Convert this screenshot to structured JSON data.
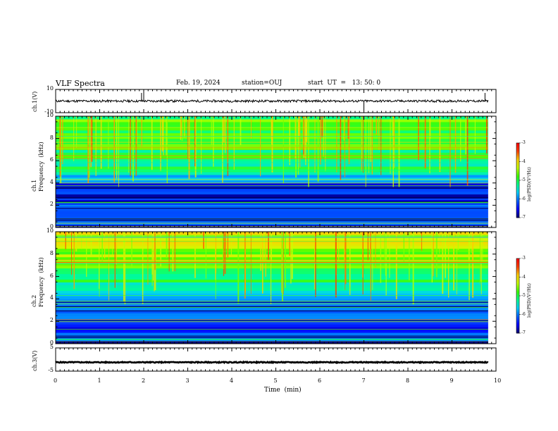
{
  "header": {
    "title": "VLF Spectra",
    "date": "Feb. 19, 2024",
    "station": "station=OUJ",
    "start": "start  UT  =   13: 50: 0"
  },
  "labels": {
    "ch1_wave": "ch.1(V)",
    "ch1_spec": "ch.1\nFrequency  (kHz)",
    "ch2_spec": "ch.2\nFrequency  (kHz)",
    "ch3_wave": "ch.3(V)",
    "xlabel": "Time  (min)",
    "colorbar": "log(PSD)(V²/Hz)"
  },
  "ticks": {
    "ch1_wave_y": [
      "10",
      "-10"
    ],
    "spec_y": [
      "0",
      "2",
      "4",
      "6",
      "8",
      "10"
    ],
    "ch3_wave_y": [
      "5",
      "-5"
    ],
    "x": [
      "0",
      "1",
      "2",
      "3",
      "4",
      "5",
      "6",
      "7",
      "8",
      "9",
      "10"
    ],
    "colorbar": [
      "-3",
      "-4",
      "-5",
      "-6",
      "-7"
    ]
  },
  "colors": {
    "colormap": [
      "#00006e",
      "#0000ff",
      "#0060ff",
      "#00d0ff",
      "#00ff90",
      "#40ff00",
      "#c8ff00",
      "#ffd000",
      "#ff4000",
      "#ff0000"
    ],
    "trace": "#000000"
  },
  "chart_data": [
    {
      "type": "line",
      "panel": "ch.1 waveform",
      "ylabel": "ch.1(V)",
      "ylim": [
        -10,
        10
      ],
      "xlim": [
        0,
        10
      ],
      "x_max_data": 9.82,
      "baseline": 0,
      "noise_amplitude": 1.0,
      "spikes": [
        {
          "x": 1.95,
          "y": 7
        },
        {
          "x": 2.0,
          "y": 8
        },
        {
          "x": 7.0,
          "y": -8
        },
        {
          "x": 9.75,
          "y": 7
        }
      ]
    },
    {
      "type": "heatmap",
      "panel": "ch.1 spectrogram",
      "ylabel": "Frequency (kHz)",
      "xlim": [
        0,
        10
      ],
      "ylim": [
        0,
        10
      ],
      "x_max_data": 9.82,
      "colorbar_range": [
        -7,
        -3
      ],
      "colorbar_label": "log(PSD)(V²/Hz)",
      "mean_log_psd_by_frequency": [
        {
          "f": 0.5,
          "v": -6.4
        },
        {
          "f": 1.5,
          "v": -6.2
        },
        {
          "f": 2.5,
          "v": -6.3
        },
        {
          "f": 3.5,
          "v": -6.6
        },
        {
          "f": 4.5,
          "v": -5.8
        },
        {
          "f": 5.5,
          "v": -5.3
        },
        {
          "f": 6.5,
          "v": -5.0
        },
        {
          "f": 7.5,
          "v": -4.8
        },
        {
          "f": 8.5,
          "v": -4.8
        },
        {
          "f": 9.5,
          "v": -4.9
        }
      ]
    },
    {
      "type": "heatmap",
      "panel": "ch.2 spectrogram",
      "ylabel": "Frequency (kHz)",
      "xlim": [
        0,
        10
      ],
      "ylim": [
        0,
        10
      ],
      "x_max_data": 9.82,
      "colorbar_range": [
        -7,
        -3
      ],
      "colorbar_label": "log(PSD)(V²/Hz)",
      "mean_log_psd_by_frequency": [
        {
          "f": 0.5,
          "v": -6.4
        },
        {
          "f": 1.5,
          "v": -6.2
        },
        {
          "f": 2.5,
          "v": -6.1
        },
        {
          "f": 3.5,
          "v": -6.0
        },
        {
          "f": 4.5,
          "v": -5.6
        },
        {
          "f": 5.5,
          "v": -5.3
        },
        {
          "f": 6.5,
          "v": -5.0
        },
        {
          "f": 7.5,
          "v": -4.6
        },
        {
          "f": 8.5,
          "v": -4.4
        },
        {
          "f": 9.5,
          "v": -4.2
        }
      ]
    },
    {
      "type": "line",
      "panel": "ch.3 waveform",
      "ylabel": "ch.3(V)",
      "ylim": [
        -5,
        5
      ],
      "xlim": [
        0,
        10
      ],
      "x_max_data": 9.82,
      "baseline": -1.2,
      "noise_amplitude": 0.2
    }
  ]
}
